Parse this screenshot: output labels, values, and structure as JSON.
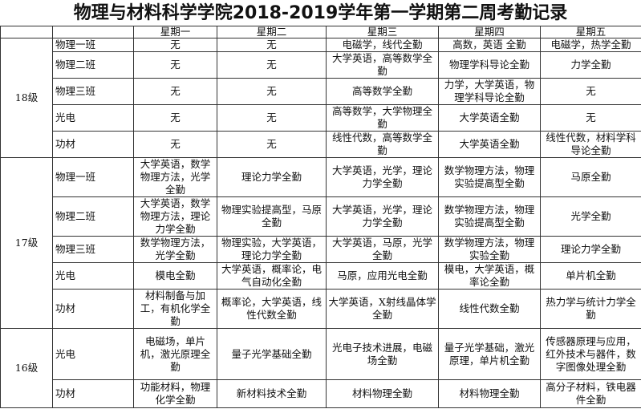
{
  "title": "物理与材料科学学院2018-2019学年第一学期第二周考勤记录",
  "header": [
    "",
    "",
    "星期一",
    "星期二",
    "星期三",
    "星期四",
    "星期五"
  ],
  "groups": [
    {
      "grade": "18级",
      "rows": [
        {
          "class": "物理一班",
          "days": [
            "无",
            "无",
            "电磁学，线代全勤",
            "高数，英语 全勤",
            "电磁学，热学全勤"
          ]
        },
        {
          "class": "物理二班",
          "days": [
            "无",
            "无",
            "大学英语，高等数学全勤",
            "物理学科导论全勤",
            "力学全勤"
          ]
        },
        {
          "class": "物理三班",
          "days": [
            "无",
            "无",
            "高等数学全勤",
            "力学，大学英语，物理学科导论全勤",
            "无"
          ]
        },
        {
          "class": "光电",
          "days": [
            "无",
            "无",
            "高等数学，大学物理全勤",
            "大学英语全勤",
            "无"
          ]
        },
        {
          "class": "功材",
          "days": [
            "无",
            "无",
            "线性代数，高等数学全勤",
            "大学英语全勤",
            "线性代数，材料学科导论全勤"
          ]
        }
      ]
    },
    {
      "grade": "17级",
      "rows": [
        {
          "class": "物理一班",
          "days": [
            "大学英语，数学物理方法，光学全勤",
            "理论力学全勤",
            "大学英语，光学，理论力学全勤",
            "数学物理方法，物理实验提高型全勤",
            "马原全勤"
          ]
        },
        {
          "class": "物理二班",
          "days": [
            "大学英语，数学物理方法，理论力学全勤",
            "物理实验提高型，马原全勤",
            "大学英语，光学，理论力学全勤",
            "数学物理方法，物理实验提高型全勤",
            "光学全勤"
          ]
        },
        {
          "class": "物理三班",
          "days": [
            "数学物理方法，光学全勤",
            "物理实验，大学英语，理论力学全勤",
            "大学英语，马原，光学全勤",
            "数学物理方法，物理实验全勤",
            "理论力学全勤"
          ]
        },
        {
          "class": "光电",
          "days": [
            "模电全勤",
            "大学英语，概率论，电气自动化全勤",
            "马原，应用光电全勤",
            "模电，大学英语，概率论全勤",
            "单片机全勤"
          ]
        },
        {
          "class": "功材",
          "days": [
            "材料制备与加工，有机化学全勤",
            "概率论，大学英语，线性代数全勤",
            "大学英语，X射线晶体学全勤",
            "线性代数全勤",
            "热力学与统计力学全勤"
          ]
        }
      ]
    },
    {
      "grade": "16级",
      "rows": [
        {
          "class": "光电",
          "days": [
            "电磁场，单片机，激光原理全勤",
            "量子光学基础全勤",
            "光电子技术进展，电磁场全勤",
            "量子光学基础，激光原理，单片机全勤",
            "传感器原理与应用，红外技术与器件，数字图像处理全勤"
          ]
        },
        {
          "class": "功材",
          "days": [
            "功能材料，物理化学全勤",
            "新材料技术全勤",
            "材料物理全勤",
            "材料物理全勤",
            "高分子材料，铁电器件全勤"
          ]
        }
      ]
    }
  ]
}
